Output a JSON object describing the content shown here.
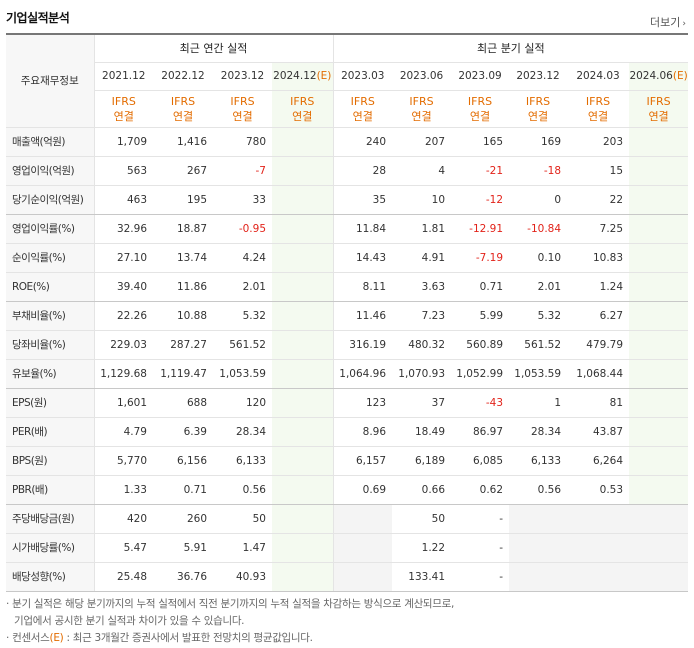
{
  "title": "기업실적분석",
  "more_label": "더보기",
  "corner_label": "주요재무정보",
  "groups": {
    "annual": "최근 연간 실적",
    "quarterly": "최근 분기 실적"
  },
  "periods": [
    {
      "label": "2021.12",
      "est": ""
    },
    {
      "label": "2022.12",
      "est": ""
    },
    {
      "label": "2023.12",
      "est": ""
    },
    {
      "label": "2024.12",
      "est": "(E)"
    },
    {
      "label": "2023.03",
      "est": ""
    },
    {
      "label": "2023.06",
      "est": ""
    },
    {
      "label": "2023.09",
      "est": ""
    },
    {
      "label": "2023.12",
      "est": ""
    },
    {
      "label": "2024.03",
      "est": ""
    },
    {
      "label": "2024.06",
      "est": "(E)"
    }
  ],
  "ifrs_line1": "IFRS",
  "ifrs_line2": "연결",
  "rows": [
    {
      "label": "매출액(억원)",
      "values": [
        "1,709",
        "1,416",
        "780",
        "",
        "240",
        "207",
        "165",
        "169",
        "203",
        ""
      ]
    },
    {
      "label": "영업이익(억원)",
      "values": [
        "563",
        "267",
        "-7",
        "",
        "28",
        "4",
        "-21",
        "-18",
        "15",
        ""
      ]
    },
    {
      "label": "당기순이익(억원)",
      "values": [
        "463",
        "195",
        "33",
        "",
        "35",
        "10",
        "-12",
        "0",
        "22",
        ""
      ]
    },
    {
      "label": "영업이익률(%)",
      "values": [
        "32.96",
        "18.87",
        "-0.95",
        "",
        "11.84",
        "1.81",
        "-12.91",
        "-10.84",
        "7.25",
        ""
      ]
    },
    {
      "label": "순이익률(%)",
      "values": [
        "27.10",
        "13.74",
        "4.24",
        "",
        "14.43",
        "4.91",
        "-7.19",
        "0.10",
        "10.83",
        ""
      ]
    },
    {
      "label": "ROE(%)",
      "values": [
        "39.40",
        "11.86",
        "2.01",
        "",
        "8.11",
        "3.63",
        "0.71",
        "2.01",
        "1.24",
        ""
      ]
    },
    {
      "label": "부채비율(%)",
      "values": [
        "22.26",
        "10.88",
        "5.32",
        "",
        "11.46",
        "7.23",
        "5.99",
        "5.32",
        "6.27",
        ""
      ]
    },
    {
      "label": "당좌비율(%)",
      "values": [
        "229.03",
        "287.27",
        "561.52",
        "",
        "316.19",
        "480.32",
        "560.89",
        "561.52",
        "479.79",
        ""
      ]
    },
    {
      "label": "유보율(%)",
      "values": [
        "1,129.68",
        "1,119.47",
        "1,053.59",
        "",
        "1,064.96",
        "1,070.93",
        "1,052.99",
        "1,053.59",
        "1,068.44",
        ""
      ]
    },
    {
      "label": "EPS(원)",
      "values": [
        "1,601",
        "688",
        "120",
        "",
        "123",
        "37",
        "-43",
        "1",
        "81",
        ""
      ]
    },
    {
      "label": "PER(배)",
      "values": [
        "4.79",
        "6.39",
        "28.34",
        "",
        "8.96",
        "18.49",
        "86.97",
        "28.34",
        "43.87",
        ""
      ]
    },
    {
      "label": "BPS(원)",
      "values": [
        "5,770",
        "6,156",
        "6,133",
        "",
        "6,157",
        "6,189",
        "6,085",
        "6,133",
        "6,264",
        ""
      ]
    },
    {
      "label": "PBR(배)",
      "values": [
        "1.33",
        "0.71",
        "0.56",
        "",
        "0.69",
        "0.66",
        "0.62",
        "0.56",
        "0.53",
        ""
      ]
    },
    {
      "label": "주당배당금(원)",
      "values": [
        "420",
        "260",
        "50",
        "",
        "",
        "50",
        "-",
        "",
        "",
        " "
      ]
    },
    {
      "label": "시가배당률(%)",
      "values": [
        "5.47",
        "5.91",
        "1.47",
        "",
        "",
        "1.22",
        "-",
        "",
        "",
        " "
      ]
    },
    {
      "label": "배당성향(%)",
      "values": [
        "25.48",
        "36.76",
        "40.93",
        "",
        "",
        "133.41",
        "-",
        "",
        "",
        " "
      ]
    }
  ],
  "notes": {
    "line1": "분기 실적은 해당 분기까지의 누적 실적에서 직전 분기까지의 누적 실적을 차감하는 방식으로 계산되므로,",
    "line2": "기업에서 공시한 분기 실적과 차이가 있을 수 있습니다.",
    "line3_prefix": "컨센서스",
    "line3_est": "(E)",
    "line3_suffix": " : 최근 3개월간 증권사에서 발표한 전망치의 평균값입니다."
  },
  "colors": {
    "estimate": "#e36c00",
    "negative": "#e2231a",
    "estimate_bg": "#f4faf0"
  }
}
